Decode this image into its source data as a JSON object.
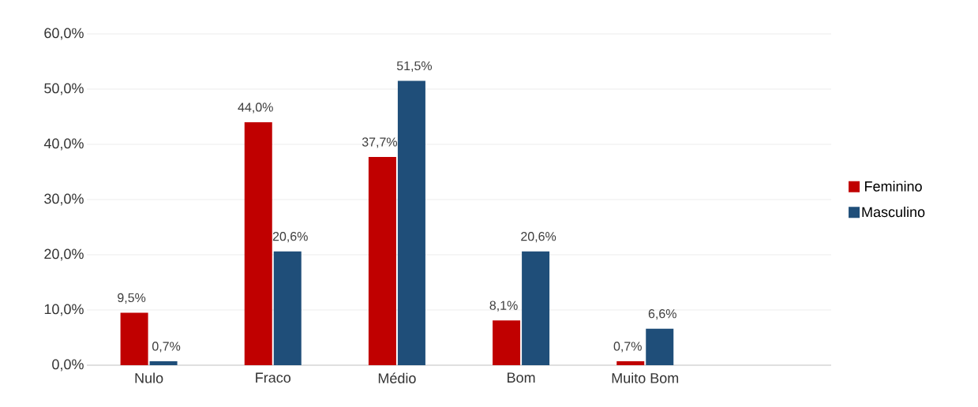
{
  "chart_data": {
    "type": "bar",
    "categories": [
      "Nulo",
      "Fraco",
      "Médio",
      "Bom",
      "Muito Bom",
      null
    ],
    "series": [
      {
        "name": "Feminino",
        "color": "#c00000",
        "values": [
          9.5,
          44.0,
          37.7,
          8.1,
          0.7,
          null
        ],
        "value_labels": [
          "9,5%",
          "44,0%",
          "37,7%",
          "8,1%",
          "0,7%",
          null
        ]
      },
      {
        "name": "Masculino",
        "color": "#1f4e79",
        "values": [
          0.7,
          20.6,
          51.5,
          20.6,
          6.6,
          null
        ],
        "value_labels": [
          "0,7%",
          "20,6%",
          "51,5%",
          "20,6%",
          "6,6%",
          null
        ]
      }
    ],
    "ylim": [
      0,
      60
    ],
    "yticks": [
      {
        "value": 0,
        "label": "0,0%"
      },
      {
        "value": 10,
        "label": "10,0%"
      },
      {
        "value": 20,
        "label": "20,0%"
      },
      {
        "value": 30,
        "label": "30,0%"
      },
      {
        "value": 40,
        "label": "40,0%"
      },
      {
        "value": 50,
        "label": "50,0%"
      },
      {
        "value": 60,
        "label": "60,0%"
      }
    ],
    "grid": "y",
    "legend": "right"
  }
}
